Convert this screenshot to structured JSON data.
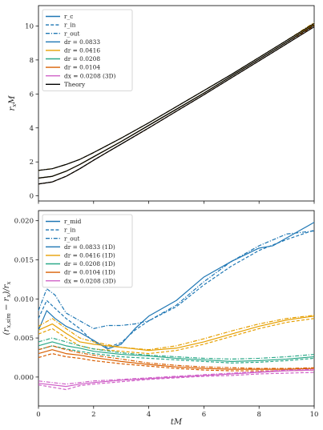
{
  "figure": {
    "x_axis_label": "tM",
    "x_ticks": [
      "0",
      "2",
      "4",
      "6",
      "8",
      "10"
    ]
  },
  "chart_data": [
    {
      "type": "line",
      "panel": "top",
      "ylabel": "r_x M",
      "xlim": [
        0,
        10
      ],
      "ylim": [
        -0.3,
        11.2
      ],
      "y_ticks": [
        "0",
        "2",
        "4",
        "6",
        "8",
        "10"
      ],
      "legend_position": "top-left",
      "legend": [
        {
          "label": "r_c",
          "color": "#1f77b4",
          "dash": "solid"
        },
        {
          "label": "r_in",
          "color": "#1f77b4",
          "dash": "dashed"
        },
        {
          "label": "r_out",
          "color": "#1f77b4",
          "dash": "dashdot"
        },
        {
          "label": "dr = 0.0833",
          "color": "#1f77b4",
          "dash": "solid"
        },
        {
          "label": "dr = 0.0416",
          "color": "#e69f00",
          "dash": "solid"
        },
        {
          "label": "dr = 0.0208",
          "color": "#2ca989",
          "dash": "solid"
        },
        {
          "label": "dr = 0.0104",
          "color": "#d95f02",
          "dash": "solid"
        },
        {
          "label": "dx = 0.0208 (3D)",
          "color": "#d062c8",
          "dash": "solid"
        },
        {
          "label": "Theory",
          "color": "#000000",
          "dash": "solid"
        }
      ],
      "series": [
        {
          "key": "rc",
          "color": "#1f77b4",
          "dash": "solid",
          "x": [
            0,
            0.5,
            1,
            1.5,
            2,
            3,
            4,
            5,
            6,
            7,
            8,
            9,
            10
          ],
          "y": [
            1.05,
            1.15,
            1.45,
            1.85,
            2.3,
            3.2,
            4.15,
            5.1,
            6.05,
            7.05,
            8.05,
            9.05,
            10.1
          ]
        },
        {
          "key": "rin",
          "color": "#1f77b4",
          "dash": "dashed",
          "x": [
            0,
            0.5,
            1,
            1.5,
            2,
            3,
            4,
            5,
            6,
            7,
            8,
            9,
            10
          ],
          "y": [
            0.7,
            0.82,
            1.15,
            1.6,
            2.1,
            3.05,
            4.0,
            4.98,
            5.95,
            6.95,
            7.95,
            8.95,
            10.0
          ]
        },
        {
          "key": "rout",
          "color": "#1f77b4",
          "dash": "dashdot",
          "x": [
            0,
            0.5,
            1,
            1.5,
            2,
            3,
            4,
            5,
            6,
            7,
            8,
            9,
            10
          ],
          "y": [
            1.5,
            1.6,
            1.85,
            2.15,
            2.55,
            3.4,
            4.3,
            5.25,
            6.2,
            7.15,
            8.15,
            9.15,
            10.2
          ]
        },
        {
          "key": "rc_o",
          "color": "#e69f00",
          "dash": "solid",
          "x": [
            0,
            0.5,
            1,
            1.5,
            2,
            3,
            4,
            5,
            6,
            7,
            8,
            9,
            10
          ],
          "y": [
            1.05,
            1.15,
            1.45,
            1.85,
            2.3,
            3.2,
            4.15,
            5.1,
            6.05,
            7.05,
            8.05,
            9.05,
            10.1
          ]
        },
        {
          "key": "rin_o",
          "color": "#d95f02",
          "dash": "dashed",
          "x": [
            0,
            0.5,
            1,
            1.5,
            2,
            3,
            4,
            5,
            6,
            7,
            8,
            9,
            10
          ],
          "y": [
            0.7,
            0.82,
            1.15,
            1.6,
            2.1,
            3.05,
            4.0,
            4.98,
            5.95,
            6.95,
            7.95,
            8.95,
            10.0
          ]
        },
        {
          "key": "rout_o",
          "color": "#e69f00",
          "dash": "dashdot",
          "x": [
            0,
            0.5,
            1,
            1.5,
            2,
            3,
            4,
            5,
            6,
            7,
            8,
            9,
            10
          ],
          "y": [
            1.5,
            1.6,
            1.85,
            2.15,
            2.55,
            3.4,
            4.3,
            5.25,
            6.2,
            7.15,
            8.15,
            9.15,
            10.2
          ]
        },
        {
          "key": "theory_c",
          "color": "#000000",
          "dash": "solid",
          "x": [
            0,
            0.5,
            1,
            1.5,
            2,
            3,
            4,
            5,
            6,
            7,
            8,
            9,
            10
          ],
          "y": [
            1.05,
            1.15,
            1.45,
            1.85,
            2.3,
            3.2,
            4.15,
            5.1,
            6.05,
            7.05,
            8.05,
            9.05,
            10.05
          ]
        },
        {
          "key": "theory_in",
          "color": "#000000",
          "dash": "solid",
          "x": [
            0,
            0.5,
            1,
            1.5,
            2,
            3,
            4,
            5,
            6,
            7,
            8,
            9,
            10
          ],
          "y": [
            0.7,
            0.82,
            1.15,
            1.6,
            2.1,
            3.05,
            4.0,
            4.98,
            5.95,
            6.95,
            7.95,
            8.95,
            9.95
          ]
        },
        {
          "key": "theory_out",
          "color": "#000000",
          "dash": "solid",
          "x": [
            0,
            0.5,
            1,
            1.5,
            2,
            3,
            4,
            5,
            6,
            7,
            8,
            9,
            10
          ],
          "y": [
            1.5,
            1.6,
            1.85,
            2.15,
            2.55,
            3.4,
            4.3,
            5.25,
            6.2,
            7.15,
            8.15,
            9.15,
            10.15
          ]
        }
      ]
    },
    {
      "type": "line",
      "panel": "bottom",
      "ylabel": "(r_x,sim − r_x)/r_x",
      "xlim": [
        0,
        10
      ],
      "ylim": [
        -0.0037,
        0.0213
      ],
      "y_ticks": [
        "0.000",
        "0.005",
        "0.010",
        "0.015",
        "0.020"
      ],
      "legend_position": "top-left",
      "legend": [
        {
          "label": "r_mid",
          "color": "#1f77b4",
          "dash": "solid"
        },
        {
          "label": "r_in",
          "color": "#1f77b4",
          "dash": "dashed"
        },
        {
          "label": "r_out",
          "color": "#1f77b4",
          "dash": "dashdot"
        },
        {
          "label": "dr = 0.0833 (1D)",
          "color": "#1f77b4",
          "dash": "solid"
        },
        {
          "label": "dr = 0.0416 (1D)",
          "color": "#e69f00",
          "dash": "solid"
        },
        {
          "label": "dr = 0.0208 (1D)",
          "color": "#2ca989",
          "dash": "solid"
        },
        {
          "label": "dr = 0.0104 (1D)",
          "color": "#d95f02",
          "dash": "solid"
        },
        {
          "label": "dx = 0.0208 (3D)",
          "color": "#d062c8",
          "dash": "solid"
        }
      ],
      "series": [
        {
          "key": "b833_mid",
          "color": "#1f77b4",
          "dash": "solid",
          "x": [
            0,
            0.3,
            0.6,
            1,
            1.5,
            2,
            2.5,
            3,
            3.5,
            4,
            5,
            6,
            7,
            8,
            8.5,
            9,
            9.5,
            10
          ],
          "y": [
            0.006,
            0.0085,
            0.0075,
            0.0065,
            0.0057,
            0.0047,
            0.0036,
            0.0042,
            0.0062,
            0.0078,
            0.0098,
            0.0128,
            0.0148,
            0.0165,
            0.0168,
            0.0178,
            0.0188,
            0.0198
          ]
        },
        {
          "key": "b833_in",
          "color": "#1f77b4",
          "dash": "dashed",
          "x": [
            0,
            0.3,
            0.6,
            1,
            1.5,
            2,
            2.5,
            3,
            3.5,
            4,
            5,
            6,
            7,
            8,
            9,
            10
          ],
          "y": [
            0.0075,
            0.0098,
            0.0088,
            0.0075,
            0.0062,
            0.0045,
            0.0038,
            0.0044,
            0.006,
            0.0072,
            0.009,
            0.0118,
            0.0142,
            0.0162,
            0.0176,
            0.0188
          ]
        },
        {
          "key": "b833_out",
          "color": "#1f77b4",
          "dash": "dashdot",
          "x": [
            0,
            0.3,
            0.6,
            1,
            1.5,
            2,
            2.5,
            3,
            3.5,
            4,
            5,
            6,
            7,
            8,
            9,
            10
          ],
          "y": [
            0.0085,
            0.0113,
            0.0105,
            0.0082,
            0.0072,
            0.0062,
            0.0066,
            0.0066,
            0.0068,
            0.0072,
            0.0092,
            0.0122,
            0.0148,
            0.0168,
            0.0183,
            0.0187
          ]
        },
        {
          "key": "b416_mid",
          "color": "#e69f00",
          "dash": "solid",
          "x": [
            0,
            0.5,
            1,
            1.5,
            2,
            3,
            4,
            5,
            6,
            7,
            8,
            9,
            10
          ],
          "y": [
            0.006,
            0.0068,
            0.0056,
            0.0045,
            0.0042,
            0.0038,
            0.0034,
            0.0037,
            0.0045,
            0.0055,
            0.0065,
            0.0073,
            0.0078
          ]
        },
        {
          "key": "b416_in",
          "color": "#e69f00",
          "dash": "dashed",
          "x": [
            0,
            0.5,
            1,
            1.5,
            2,
            3,
            4,
            5,
            6,
            7,
            8,
            9,
            10
          ],
          "y": [
            0.0055,
            0.0062,
            0.005,
            0.004,
            0.0036,
            0.0033,
            0.003,
            0.0034,
            0.0042,
            0.0052,
            0.0062,
            0.007,
            0.0075
          ]
        },
        {
          "key": "b416_out",
          "color": "#e69f00",
          "dash": "dashdot",
          "x": [
            0,
            0.5,
            1,
            1.5,
            2,
            3,
            4,
            5,
            6,
            7,
            8,
            9,
            10
          ],
          "y": [
            0.0065,
            0.0075,
            0.0062,
            0.005,
            0.0045,
            0.0038,
            0.0035,
            0.004,
            0.0049,
            0.0059,
            0.0068,
            0.0075,
            0.0079
          ]
        },
        {
          "key": "b208_mid",
          "color": "#2ca989",
          "dash": "solid",
          "x": [
            0,
            0.5,
            1,
            1.5,
            2,
            3,
            4,
            5,
            6,
            7,
            8,
            9,
            10
          ],
          "y": [
            0.004,
            0.0045,
            0.004,
            0.0037,
            0.0033,
            0.0029,
            0.0027,
            0.0024,
            0.0022,
            0.002,
            0.0021,
            0.0023,
            0.0026
          ]
        },
        {
          "key": "b208_in",
          "color": "#2ca989",
          "dash": "dashed",
          "x": [
            0,
            0.5,
            1,
            1.5,
            2,
            3,
            4,
            5,
            6,
            7,
            8,
            9,
            10
          ],
          "y": [
            0.0035,
            0.004,
            0.0036,
            0.0033,
            0.003,
            0.0026,
            0.0024,
            0.0022,
            0.002,
            0.0018,
            0.0019,
            0.0021,
            0.0024
          ]
        },
        {
          "key": "b208_out",
          "color": "#2ca989",
          "dash": "dashdot",
          "x": [
            0,
            0.5,
            1,
            1.5,
            2,
            3,
            4,
            5,
            6,
            7,
            8,
            9,
            10
          ],
          "y": [
            0.0045,
            0.005,
            0.0045,
            0.004,
            0.0036,
            0.0031,
            0.0028,
            0.0026,
            0.0024,
            0.0023,
            0.0024,
            0.0026,
            0.0029
          ]
        },
        {
          "key": "b104_mid",
          "color": "#d95f02",
          "dash": "solid",
          "x": [
            0,
            0.5,
            1,
            1.5,
            2,
            3,
            4,
            5,
            6,
            7,
            8,
            9,
            10
          ],
          "y": [
            0.003,
            0.0035,
            0.003,
            0.0028,
            0.0025,
            0.002,
            0.0016,
            0.0013,
            0.0011,
            0.001,
            0.001,
            0.001,
            0.0011
          ]
        },
        {
          "key": "b104_in",
          "color": "#d95f02",
          "dash": "dashed",
          "x": [
            0,
            0.5,
            1,
            1.5,
            2,
            3,
            4,
            5,
            6,
            7,
            8,
            9,
            10
          ],
          "y": [
            0.0025,
            0.003,
            0.0026,
            0.0024,
            0.0021,
            0.0017,
            0.0014,
            0.0011,
            0.0009,
            0.0008,
            0.0008,
            0.0008,
            0.0009
          ]
        },
        {
          "key": "b104_out",
          "color": "#d95f02",
          "dash": "dashdot",
          "x": [
            0,
            0.5,
            1,
            1.5,
            2,
            3,
            4,
            5,
            6,
            7,
            8,
            9,
            10
          ],
          "y": [
            0.0035,
            0.004,
            0.0035,
            0.0031,
            0.0028,
            0.0023,
            0.0018,
            0.0015,
            0.0013,
            0.0012,
            0.0011,
            0.0011,
            0.0012
          ]
        },
        {
          "key": "b3d_mid",
          "color": "#d062c8",
          "dash": "solid",
          "x": [
            0,
            0.5,
            1,
            1.5,
            2,
            3,
            4,
            5,
            6,
            7,
            8,
            9,
            10
          ],
          "y": [
            -0.0008,
            -0.001,
            -0.0012,
            -0.0009,
            -0.0007,
            -0.0004,
            -0.0002,
            0.0,
            0.0002,
            0.0004,
            0.0006,
            0.0008,
            0.0009
          ]
        },
        {
          "key": "b3d_in",
          "color": "#d062c8",
          "dash": "dashed",
          "x": [
            0,
            0.5,
            1,
            1.5,
            2,
            3,
            4,
            5,
            6,
            7,
            8,
            9,
            10
          ],
          "y": [
            -0.001,
            -0.0013,
            -0.0016,
            -0.0011,
            -0.0009,
            -0.0006,
            -0.0003,
            -0.0001,
            0.0001,
            0.0002,
            0.0004,
            0.0005,
            0.0006
          ]
        },
        {
          "key": "b3d_out",
          "color": "#d062c8",
          "dash": "dashdot",
          "x": [
            0,
            0.5,
            1,
            1.5,
            2,
            3,
            4,
            5,
            6,
            7,
            8,
            9,
            10
          ],
          "y": [
            -0.0005,
            -0.0007,
            -0.0009,
            -0.0007,
            -0.0005,
            -0.0003,
            -0.0001,
            0.0001,
            0.0003,
            0.0005,
            0.0007,
            0.0009,
            0.001
          ]
        }
      ]
    }
  ]
}
